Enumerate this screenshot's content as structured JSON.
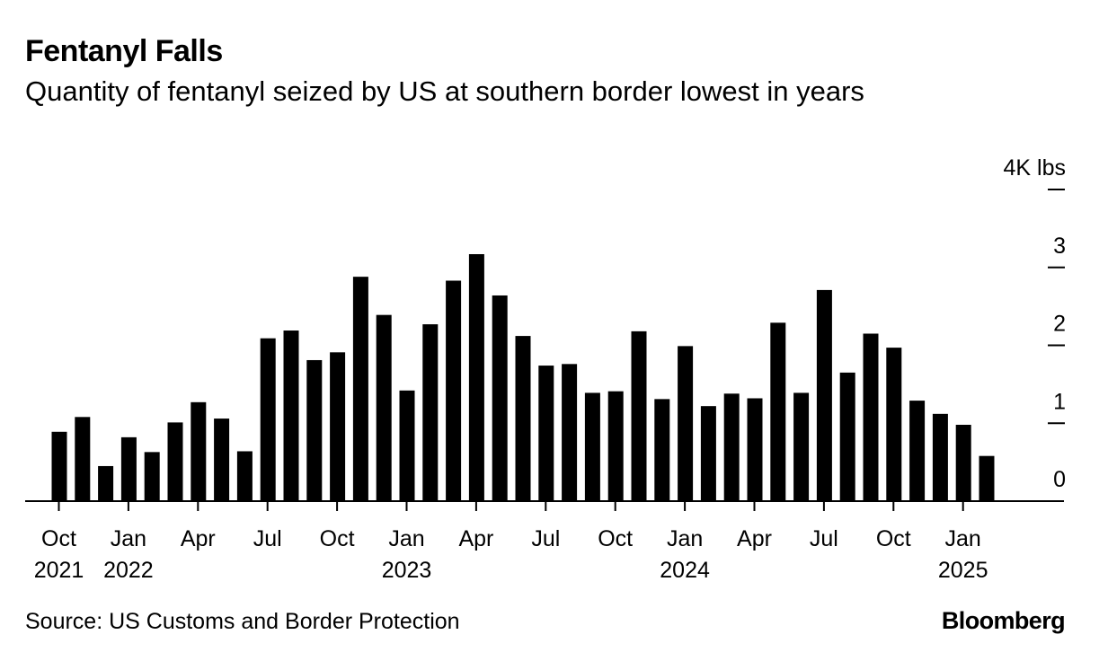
{
  "title": "Fentanyl Falls",
  "subtitle": "Quantity of fentanyl seized by US at southern border lowest in years",
  "source": "Source: US Customs and Border Protection",
  "brand": "Bloomberg",
  "colors": {
    "bar": "#000000",
    "background": "#ffffff",
    "text": "#000000"
  },
  "chart_data": {
    "type": "bar",
    "unit": "K lbs",
    "ylim": [
      0,
      4
    ],
    "yticks": [
      {
        "value": 4,
        "label": "4K lbs"
      },
      {
        "value": 3,
        "label": "3"
      },
      {
        "value": 2,
        "label": "2"
      },
      {
        "value": 1,
        "label": "1"
      },
      {
        "value": 0,
        "label": "0"
      }
    ],
    "categories": [
      "2021-10",
      "2021-11",
      "2021-12",
      "2022-01",
      "2022-02",
      "2022-03",
      "2022-04",
      "2022-05",
      "2022-06",
      "2022-07",
      "2022-08",
      "2022-09",
      "2022-10",
      "2022-11",
      "2022-12",
      "2023-01",
      "2023-02",
      "2023-03",
      "2023-04",
      "2023-05",
      "2023-06",
      "2023-07",
      "2023-08",
      "2023-09",
      "2023-10",
      "2023-11",
      "2023-12",
      "2024-01",
      "2024-02",
      "2024-03",
      "2024-04",
      "2024-05",
      "2024-06",
      "2024-07",
      "2024-08",
      "2024-09",
      "2024-10",
      "2024-11",
      "2024-12",
      "2025-01",
      "2025-02"
    ],
    "values": [
      0.89,
      1.08,
      0.45,
      0.82,
      0.63,
      1.01,
      1.27,
      1.06,
      0.64,
      2.09,
      2.19,
      1.81,
      1.91,
      2.88,
      2.39,
      1.42,
      2.27,
      2.83,
      3.17,
      2.64,
      2.12,
      1.74,
      1.76,
      1.39,
      1.41,
      2.18,
      1.31,
      1.99,
      1.22,
      1.38,
      1.32,
      2.29,
      1.39,
      2.71,
      1.65,
      2.15,
      1.97,
      1.29,
      1.12,
      0.98,
      0.58
    ],
    "xticks": [
      {
        "index": 0,
        "month": "Oct",
        "year": "2021"
      },
      {
        "index": 3,
        "month": "Jan",
        "year": "2022"
      },
      {
        "index": 6,
        "month": "Apr",
        "year": ""
      },
      {
        "index": 9,
        "month": "Jul",
        "year": ""
      },
      {
        "index": 12,
        "month": "Oct",
        "year": ""
      },
      {
        "index": 15,
        "month": "Jan",
        "year": "2023"
      },
      {
        "index": 18,
        "month": "Apr",
        "year": ""
      },
      {
        "index": 21,
        "month": "Jul",
        "year": ""
      },
      {
        "index": 24,
        "month": "Oct",
        "year": ""
      },
      {
        "index": 27,
        "month": "Jan",
        "year": "2024"
      },
      {
        "index": 30,
        "month": "Apr",
        "year": ""
      },
      {
        "index": 33,
        "month": "Jul",
        "year": ""
      },
      {
        "index": 36,
        "month": "Oct",
        "year": ""
      },
      {
        "index": 39,
        "month": "Jan",
        "year": "2025"
      }
    ],
    "grid": false
  }
}
